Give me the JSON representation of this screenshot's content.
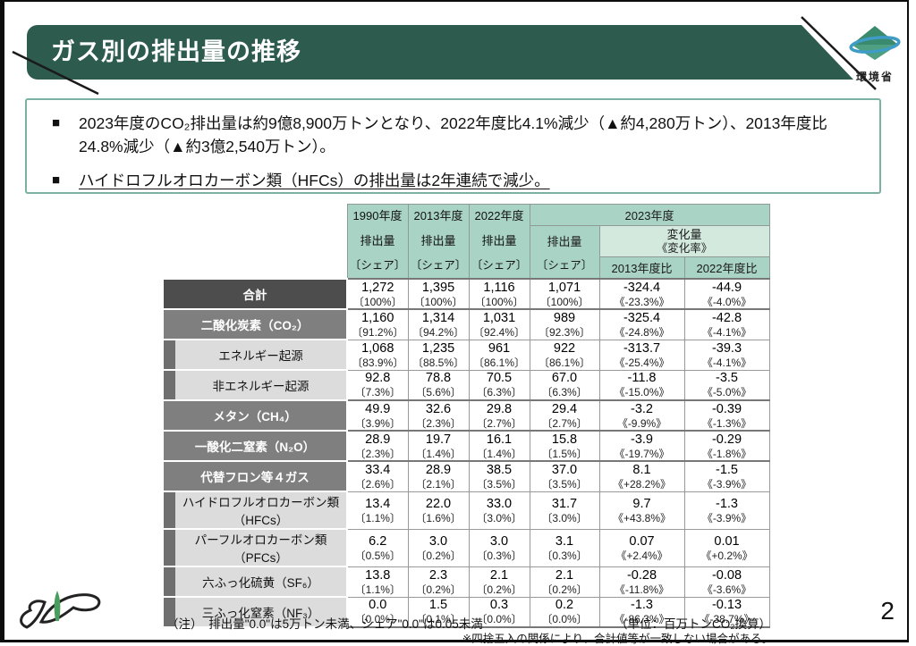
{
  "header": {
    "title": "ガス別の排出量の推移",
    "ministry": "環境省"
  },
  "bullets": {
    "marker": "■",
    "items": [
      {
        "text": "2023年度のCO₂排出量は約9億8,900万トンとなり、2022年度比4.1%減少（▲約4,280万トン）、2013年度比24.8%減少（▲約3億2,540万トン）。"
      },
      {
        "text": "ハイドロフルオロカーボン類（HFCs）の排出量は2年連続で減少。"
      }
    ]
  },
  "table": {
    "columns": {
      "y1990": "1990年度",
      "y2013": "2013年度",
      "y2022": "2022年度",
      "y2023": "2023年度",
      "emissions": "排出量",
      "share": "〔シェア〕",
      "change_amount": "変化量",
      "change_rate": "《変化率》",
      "vs_2013": "2013年度比",
      "vs_2022": "2022年度比"
    },
    "rows": [
      {
        "label": "合計",
        "level": "total",
        "values": [
          "1,272",
          "1,395",
          "1,116",
          "1,071",
          "-324.4",
          "-44.9"
        ],
        "shares": [
          "〔100%〕",
          "〔100%〕",
          "〔100%〕",
          "〔100%〕",
          "《-23.3%》",
          "《-4.0%》"
        ]
      },
      {
        "label": "二酸化炭素（CO₂）",
        "level": "gas",
        "values": [
          "1,160",
          "1,314",
          "1,031",
          "989",
          "-325.4",
          "-42.8"
        ],
        "shares": [
          "〔91.2%〕",
          "〔94.2%〕",
          "〔92.4%〕",
          "〔92.3%〕",
          "《-24.8%》",
          "《-4.1%》"
        ]
      },
      {
        "label": "エネルギー起源",
        "level": "sub",
        "values": [
          "1,068",
          "1,235",
          "961",
          "922",
          "-313.7",
          "-39.3"
        ],
        "shares": [
          "〔83.9%〕",
          "〔88.5%〕",
          "〔86.1%〕",
          "〔86.1%〕",
          "《-25.4%》",
          "《-4.1%》"
        ]
      },
      {
        "label": "非エネルギー起源",
        "level": "sub",
        "values": [
          "92.8",
          "78.8",
          "70.5",
          "67.0",
          "-11.8",
          "-3.5"
        ],
        "shares": [
          "〔7.3%〕",
          "〔5.6%〕",
          "〔6.3%〕",
          "〔6.3%〕",
          "《-15.0%》",
          "《-5.0%》"
        ]
      },
      {
        "label": "メタン（CH₄）",
        "level": "gas",
        "values": [
          "49.9",
          "32.6",
          "29.8",
          "29.4",
          "-3.2",
          "-0.39"
        ],
        "shares": [
          "〔3.9%〕",
          "〔2.3%〕",
          "〔2.7%〕",
          "〔2.7%〕",
          "《-9.9%》",
          "《-1.3%》"
        ]
      },
      {
        "label": "一酸化二窒素（N₂O）",
        "level": "gas",
        "values": [
          "28.9",
          "19.7",
          "16.1",
          "15.8",
          "-3.9",
          "-0.29"
        ],
        "shares": [
          "〔2.3%〕",
          "〔1.4%〕",
          "〔1.4%〕",
          "〔1.5%〕",
          "《-19.7%》",
          "《-1.8%》"
        ]
      },
      {
        "label": "代替フロン等４ガス",
        "level": "gas",
        "values": [
          "33.4",
          "28.9",
          "38.5",
          "37.0",
          "8.1",
          "-1.5"
        ],
        "shares": [
          "〔2.6%〕",
          "〔2.1%〕",
          "〔3.5%〕",
          "〔3.5%〕",
          "《+28.2%》",
          "《-3.9%》"
        ]
      },
      {
        "label": "ハイドロフルオロカーボン類（HFCs）",
        "level": "sub",
        "values": [
          "13.4",
          "22.0",
          "33.0",
          "31.7",
          "9.7",
          "-1.3"
        ],
        "shares": [
          "〔1.1%〕",
          "〔1.6%〕",
          "〔3.0%〕",
          "〔3.0%〕",
          "《+43.8%》",
          "《-3.9%》"
        ]
      },
      {
        "label": "パーフルオロカーボン類（PFCs）",
        "level": "sub",
        "values": [
          "6.2",
          "3.0",
          "3.0",
          "3.1",
          "0.07",
          "0.01"
        ],
        "shares": [
          "〔0.5%〕",
          "〔0.2%〕",
          "〔0.3%〕",
          "〔0.3%〕",
          "《+2.4%》",
          "《+0.2%》"
        ]
      },
      {
        "label": "六ふっ化硫黄（SF₆）",
        "level": "sub",
        "values": [
          "13.8",
          "2.3",
          "2.1",
          "2.1",
          "-0.28",
          "-0.08"
        ],
        "shares": [
          "〔1.1%〕",
          "〔0.2%〕",
          "〔0.2%〕",
          "〔0.2%〕",
          "《-11.8%》",
          "《-3.6%》"
        ]
      },
      {
        "label": "三ふっ化窒素（NF₃）",
        "level": "sub",
        "values": [
          "0.0",
          "1.5",
          "0.3",
          "0.2",
          "-1.3",
          "-0.13"
        ],
        "shares": [
          "〔0.0%〕",
          "〔0.1%〕",
          "〔0.0%〕",
          "〔0.0%〕",
          "《-86.3%》",
          "《-38.7%》"
        ]
      }
    ]
  },
  "notes": {
    "threshold": "（注）　排出量\"0.0\"は5万トン未満、シェア\"0.0\"は0.05未満",
    "unit": "（単位：百万トンCO₂換算）",
    "rounding": "※四捨五入の関係により、合計値等が一致しない場合がある。"
  },
  "page_number": "2"
}
